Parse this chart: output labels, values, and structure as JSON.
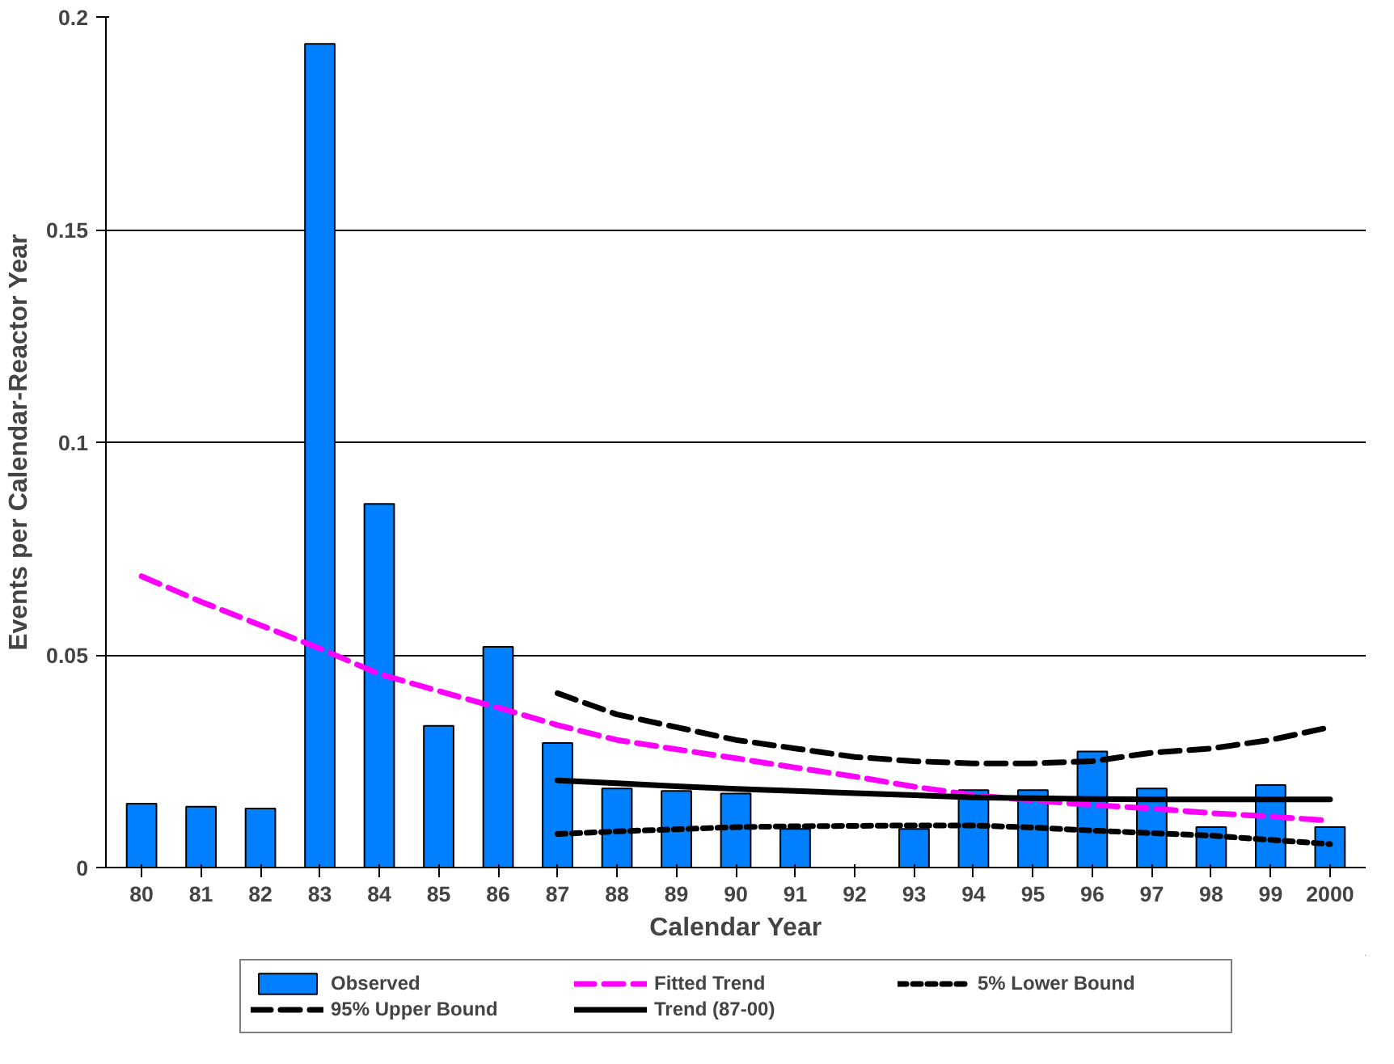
{
  "chart_data": {
    "type": "bar",
    "xlabel": "Calendar Year",
    "ylabel": "Events per Calendar-Reactor Year",
    "categories": [
      "80",
      "81",
      "82",
      "83",
      "84",
      "85",
      "86",
      "87",
      "88",
      "89",
      "90",
      "91",
      "92",
      "93",
      "94",
      "95",
      "96",
      "97",
      "98",
      "99",
      "2000"
    ],
    "ylim": [
      0,
      0.2
    ],
    "yticks": [
      0,
      0.05,
      0.1,
      0.15,
      0.2
    ],
    "grid": "y",
    "legend": "bottom",
    "marker": "none",
    "series": [
      {
        "name": "Observed",
        "color": "#0080ff",
        "values": [
          0.015,
          0.0143,
          0.0139,
          0.1937,
          0.0855,
          0.0333,
          0.0519,
          0.0293,
          0.0186,
          0.018,
          0.0174,
          0.0091,
          null,
          0.0091,
          0.0182,
          0.0182,
          0.0273,
          0.0186,
          0.0095,
          0.0194,
          0.0095
        ]
      },
      {
        "name": "Fitted Trend",
        "type": "line",
        "color": "#ff00ff",
        "line_style": "dashed",
        "values": [
          0.0685,
          0.0625,
          0.057,
          0.0515,
          0.0455,
          0.0415,
          0.0376,
          0.0335,
          0.03,
          0.0278,
          0.0257,
          0.0235,
          0.0214,
          0.019,
          0.017,
          0.0158,
          0.0147,
          0.0139,
          0.0128,
          0.012,
          0.011
        ]
      },
      {
        "name": "5% Lower Bound",
        "type": "line",
        "color": "#000000",
        "line_style": "dotted",
        "values": [
          null,
          null,
          null,
          null,
          null,
          null,
          null,
          0.0079,
          0.0085,
          0.009,
          0.0095,
          0.0097,
          0.0098,
          0.0099,
          0.0099,
          0.0094,
          0.0087,
          0.0081,
          0.0075,
          0.0065,
          0.0055
        ]
      },
      {
        "name": "95% Upper Bound",
        "type": "line",
        "color": "#000000",
        "line_style": "dashed",
        "values": [
          null,
          null,
          null,
          null,
          null,
          null,
          null,
          0.041,
          0.036,
          0.033,
          0.03,
          0.028,
          0.026,
          0.025,
          0.0245,
          0.0245,
          0.025,
          0.027,
          0.028,
          0.03,
          0.033
        ]
      },
      {
        "name": "Trend (87-00)",
        "type": "line",
        "color": "#000000",
        "line_style": "solid",
        "values": [
          null,
          null,
          null,
          null,
          null,
          null,
          null,
          0.0205,
          0.0198,
          0.0191,
          0.0185,
          0.018,
          0.0175,
          0.017,
          0.0165,
          0.0163,
          0.0161,
          0.016,
          0.016,
          0.016,
          0.016
        ]
      }
    ]
  }
}
